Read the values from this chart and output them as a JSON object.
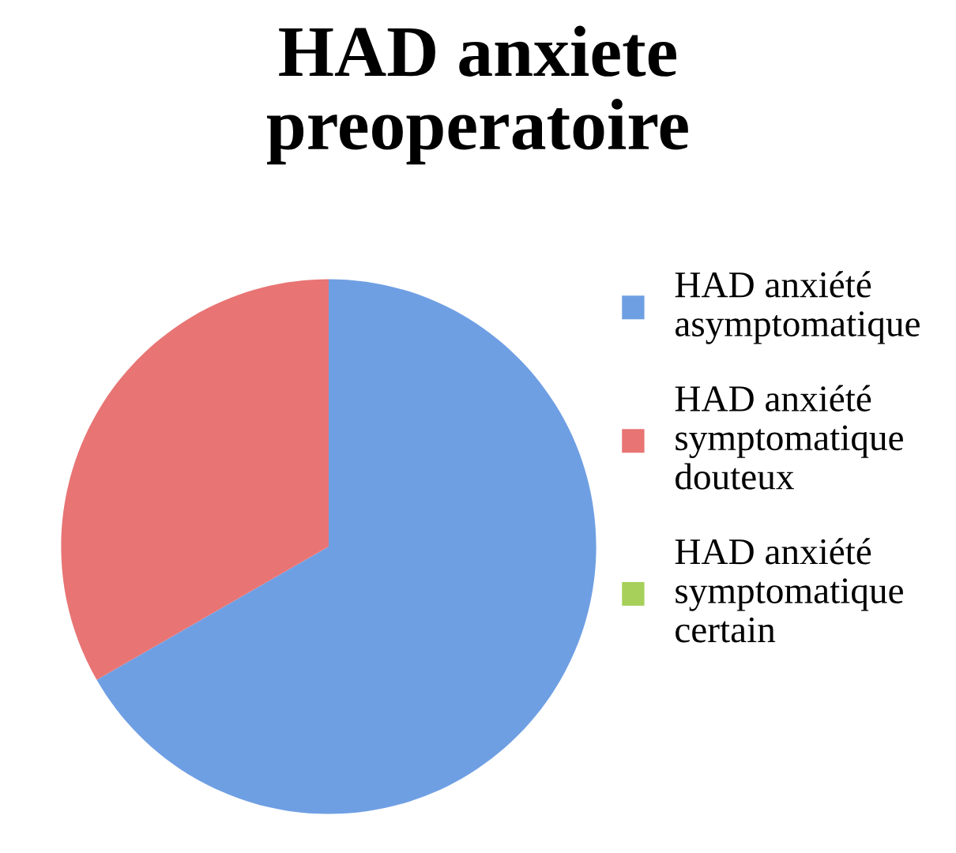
{
  "chart_data": {
    "type": "pie",
    "title": "HAD anxiete\npreoperatoire",
    "categories": [
      "HAD anxiété\nasymptomatique",
      "HAD anxiété\nsymptomatique\ndouteux",
      "HAD anxiété\nsymptomatique\ncertain"
    ],
    "values": [
      66.7,
      33.3,
      0
    ],
    "colors": [
      "#6f9fe3",
      "#e87474",
      "#a6d05a"
    ],
    "legend": "right"
  }
}
